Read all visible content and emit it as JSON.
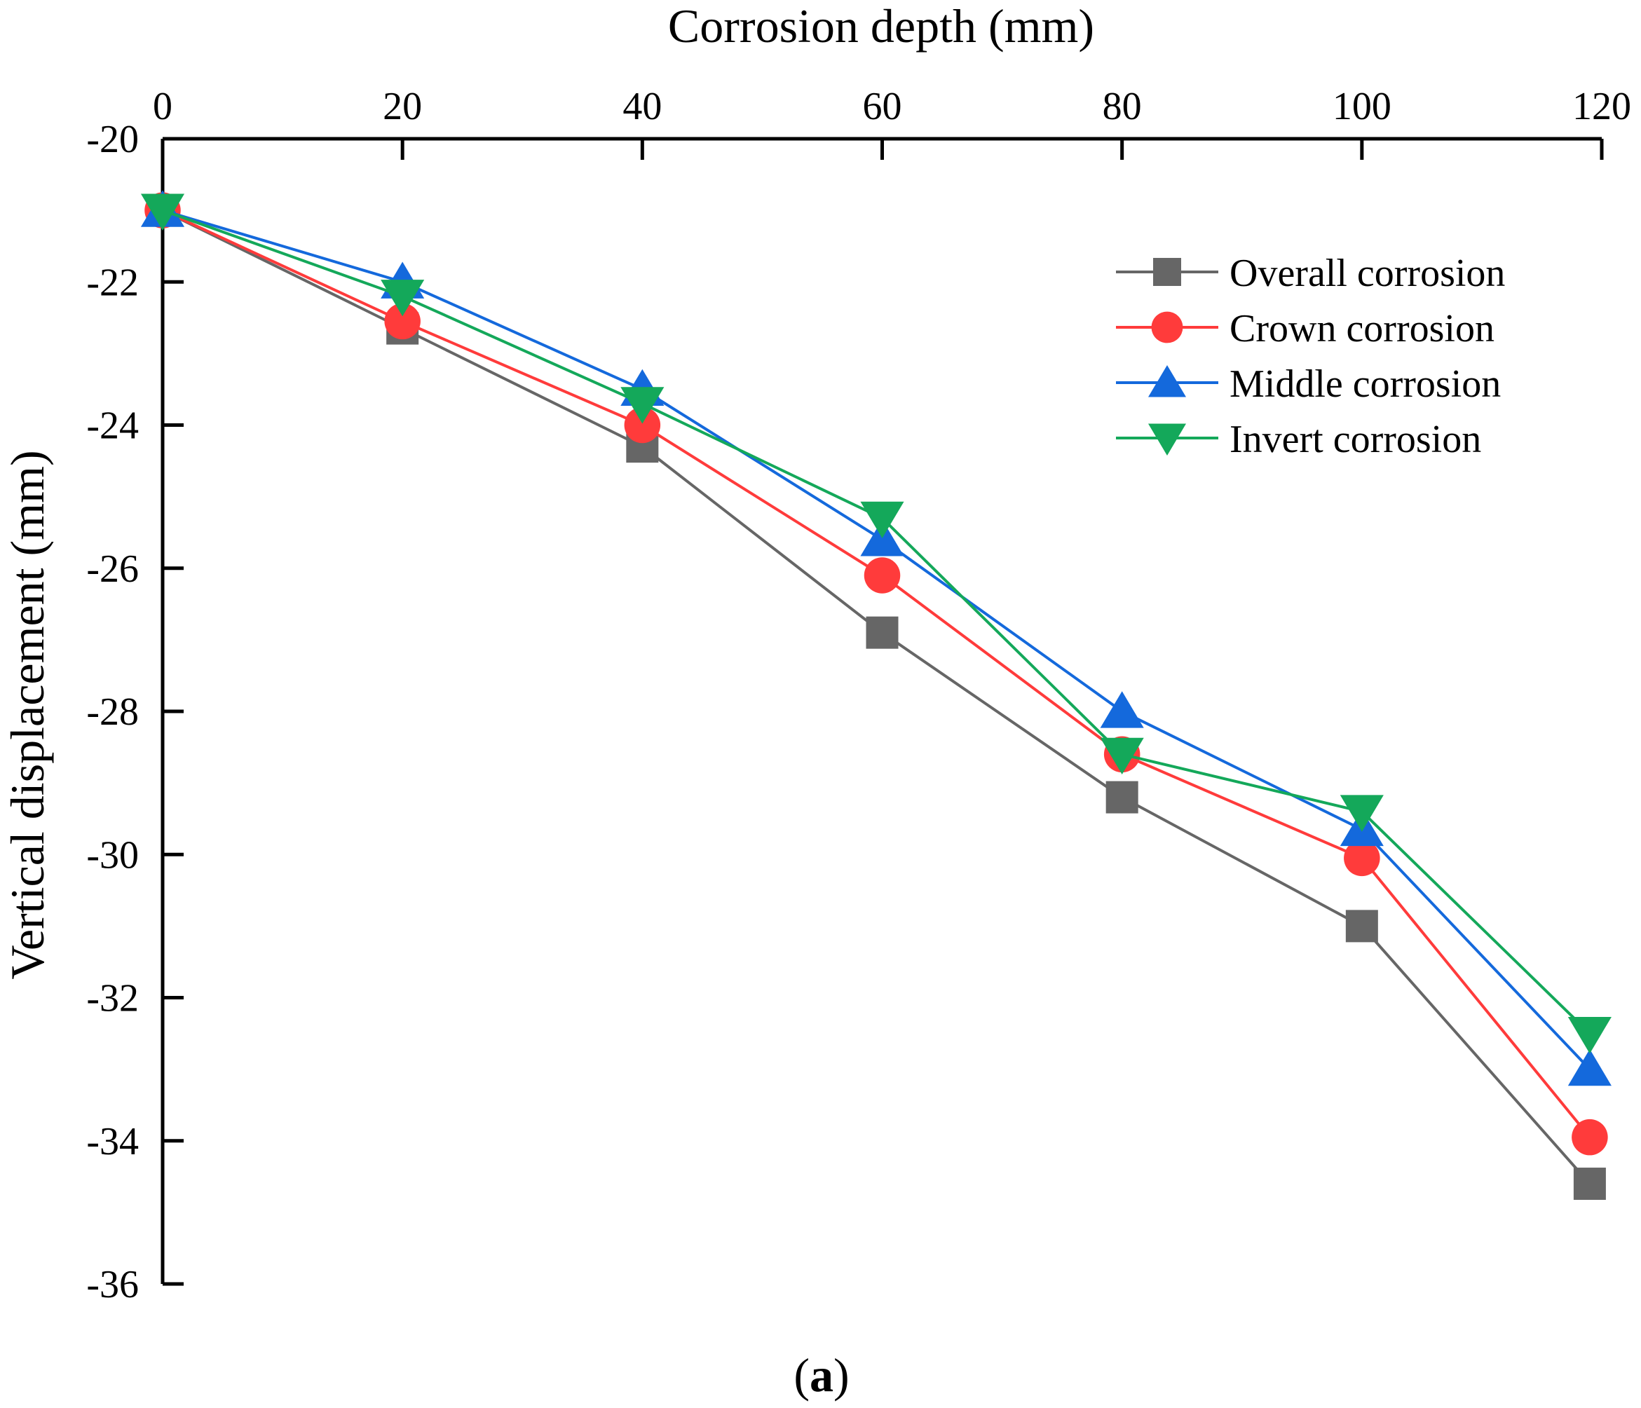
{
  "chart_data": {
    "type": "line",
    "title": "",
    "xlabel": "Corrosion depth (mm)",
    "ylabel": "Vertical displacement (mm)",
    "caption_letter": "a",
    "caption_open": "(",
    "caption_close": ")",
    "x_axis_position": "top",
    "xlim": [
      0,
      120
    ],
    "ylim": [
      -36,
      -20
    ],
    "x_ticks": [
      0,
      20,
      40,
      60,
      80,
      100,
      120
    ],
    "y_ticks": [
      -20,
      -22,
      -24,
      -26,
      -28,
      -30,
      -32,
      -34,
      -36
    ],
    "x_tick_labels": [
      "0",
      "20",
      "40",
      "60",
      "80",
      "100",
      "120"
    ],
    "y_tick_labels": [
      "-20",
      "-22",
      "-24",
      "-26",
      "-28",
      "-30",
      "-32",
      "-34",
      "-36"
    ],
    "grid": false,
    "legend_position": "top-right",
    "x": [
      0,
      20,
      40,
      60,
      80,
      100,
      119
    ],
    "series": [
      {
        "name": "Overall corrosion",
        "marker": "square",
        "color": "#666666",
        "values": [
          -21.0,
          -22.65,
          -24.3,
          -26.9,
          -29.2,
          -31.0,
          -34.6
        ]
      },
      {
        "name": "Crown corrosion",
        "marker": "circle",
        "color": "#ff3b3b",
        "values": [
          -21.0,
          -22.55,
          -24.0,
          -26.1,
          -28.6,
          -30.05,
          -33.95
        ]
      },
      {
        "name": "Middle corrosion",
        "marker": "triangle-up",
        "color": "#1469dc",
        "values": [
          -21.0,
          -22.0,
          -23.5,
          -25.6,
          -28.0,
          -29.65,
          -33.0
        ]
      },
      {
        "name": "Invert corrosion",
        "marker": "triangle-down",
        "color": "#14a85a",
        "values": [
          -21.0,
          -22.2,
          -23.7,
          -25.3,
          -28.6,
          -29.4,
          -32.5
        ]
      }
    ]
  }
}
